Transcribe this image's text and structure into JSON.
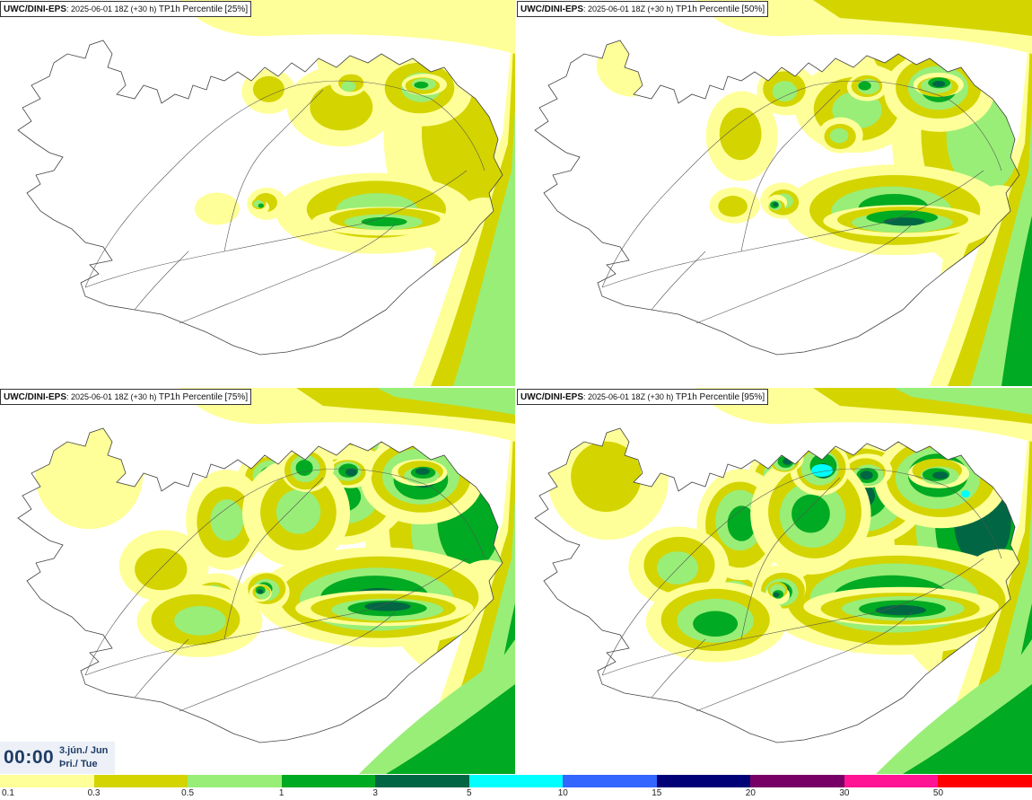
{
  "panels": [
    {
      "id": "tl",
      "model": "UWC/DINI-EPS",
      "run": "2025-06-01 18Z (+30 h)",
      "param": "TP1h Percentile",
      "percentile": "[25%]",
      "intensity": 1
    },
    {
      "id": "tr",
      "model": "UWC/DINI-EPS",
      "run": "2025-06-01 18Z (+30 h)",
      "param": "TP1h Percentile",
      "percentile": "[50%]",
      "intensity": 2
    },
    {
      "id": "bl",
      "model": "UWC/DINI-EPS",
      "run": "2025-06-01 18Z (+30 h)",
      "param": "TP1h Percentile",
      "percentile": "[75%]",
      "intensity": 3
    },
    {
      "id": "br",
      "model": "UWC/DINI-EPS",
      "run": "2025-06-01 18Z (+30 h)",
      "param": "TP1h Percentile",
      "percentile": "[95%]",
      "intensity": 4
    }
  ],
  "time": {
    "clock": "00:00",
    "date": "3.jún./ Jun",
    "weekday": "Þri./ Tue"
  },
  "legend": {
    "colors": [
      "#ffff99",
      "#d4d400",
      "#99ee77",
      "#00aa22",
      "#006644",
      "#00ffff",
      "#3366ff",
      "#000077",
      "#770066",
      "#ff1493",
      "#ff0000"
    ],
    "labels": [
      "0.1",
      "0.3",
      "0.5",
      "1",
      "3",
      "5",
      "10",
      "15",
      "20",
      "30",
      "50"
    ]
  }
}
